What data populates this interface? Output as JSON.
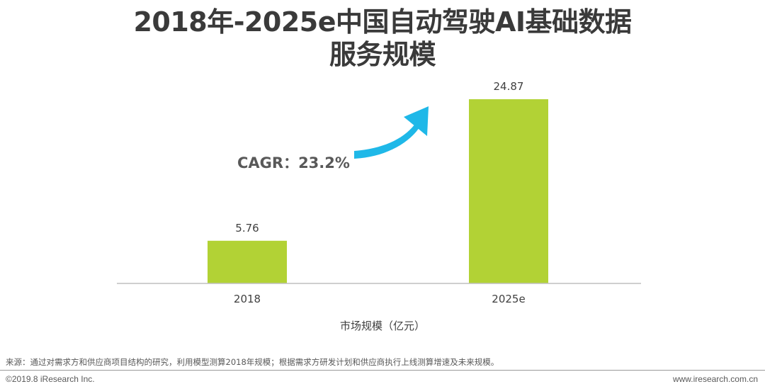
{
  "chart_data": {
    "type": "bar",
    "title_line1": "2018年-2025e中国自动驾驶AI基础数据",
    "title_line2": "服务规模",
    "categories": [
      "2018",
      "2025e"
    ],
    "values": [
      5.76,
      24.87
    ],
    "value_labels": [
      "5.76",
      "24.87"
    ],
    "xlabel": "市场规模（亿元）",
    "ylabel": "",
    "ylim": [
      0,
      26.5
    ],
    "grid": false,
    "annotation": "CAGR：23.2%",
    "colors": {
      "bar": "#b2d235",
      "arrow": "#1fb8e8",
      "axis": "#bfbfbf"
    }
  },
  "footer": {
    "source": "来源：通过对需求方和供应商项目结构的研究，利用模型测算2018年规模；根据需求方研发计划和供应商执行上线测算增速及未来规模。",
    "copyright": "©2019.8 iResearch Inc.",
    "website": "www.iresearch.com.cn"
  }
}
